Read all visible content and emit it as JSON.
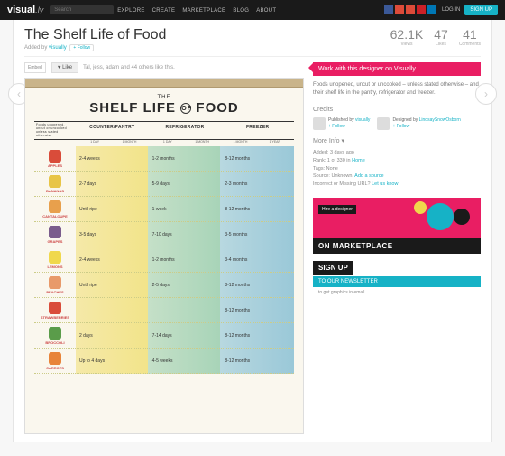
{
  "topbar": {
    "logo": "visual",
    "logoSuffix": ".ly",
    "searchPlaceholder": "Search",
    "nav": [
      "EXPLORE",
      "CREATE",
      "MARKETPLACE",
      "BLOG",
      "ABOUT"
    ],
    "socialColors": [
      "#3b5998",
      "#dd4b39",
      "#dd4b39",
      "#cb2027",
      "#0077b5"
    ],
    "login": "LOG IN",
    "signup": "SIGN UP"
  },
  "header": {
    "title": "The Shelf Life of Food",
    "addedBy": "Added by",
    "author": "visually",
    "follow": "+ Follow"
  },
  "stats": [
    {
      "n": "62.1K",
      "l": "Views"
    },
    {
      "n": "47",
      "l": "Likes"
    },
    {
      "n": "41",
      "l": "Comments"
    }
  ],
  "likebar": {
    "embed": "Embed",
    "like": "♥ Like",
    "likers": "Tal, jess, adam and 44 others like this."
  },
  "poster": {
    "the": "THE",
    "title1": "SHELF LIFE",
    "of": "OF",
    "title2": "FOOD",
    "note": "Foods unopened, uncut or uncooked unless stated otherwise",
    "cols": [
      "COUNTER/PANTRY",
      "REFRIGERATOR",
      "FREEZER"
    ],
    "sub": [
      "1 DAY",
      "1 MONTH",
      "1 DAY",
      "1 MONTH",
      "1 MONTH",
      "1 YEAR"
    ],
    "rows": [
      {
        "name": "APPLES",
        "color": "#d94c3a",
        "cells": [
          "2-4 weeks",
          "1-2 months",
          "8-12 months"
        ]
      },
      {
        "name": "BANANAS",
        "color": "#e8c547",
        "cells": [
          "2-7 days",
          "5-9 days",
          "2-3 months"
        ]
      },
      {
        "name": "CANTALOUPE",
        "color": "#e8a04c",
        "cells": [
          "Until ripe",
          "1 week",
          "8-12 months"
        ]
      },
      {
        "name": "GRAPES",
        "color": "#7a5c8c",
        "cells": [
          "3-5 days",
          "7-10 days",
          "3-5 months"
        ]
      },
      {
        "name": "LEMONS",
        "color": "#f0d84c",
        "cells": [
          "2-4 weeks",
          "1-2 months",
          "3-4 months"
        ]
      },
      {
        "name": "PEACHES",
        "color": "#e89a6a",
        "cells": [
          "Until ripe",
          "2-5 days",
          "8-12 months"
        ]
      },
      {
        "name": "STRAWBERRIES",
        "color": "#d94c3a",
        "cells": [
          "",
          "",
          "8-12 months"
        ]
      },
      {
        "name": "BROCCOLI",
        "color": "#5a9c4a",
        "cells": [
          "2 days",
          "7-14 days",
          "8-12 months"
        ]
      },
      {
        "name": "CARROTS",
        "color": "#e8843a",
        "cells": [
          "Up to 4 days",
          "4-5 weeks",
          "8-12 months"
        ]
      }
    ]
  },
  "cta": "Work with this designer on Visually",
  "desc": "Foods unopened, uncut or uncooked – unless stated otherwise – and their shelf life in the pantry, refrigerator and freezer.",
  "credits": {
    "title": "Credits",
    "pub": "Published by",
    "pubName": "visually",
    "des": "Designed by",
    "desName": "LindsaySnowOsborn",
    "follow": "+ Follow"
  },
  "moreinfo": {
    "title": "More Info ▾",
    "lines": [
      {
        "k": "Added:",
        "v": "3 days ago"
      },
      {
        "k": "Rank:",
        "v": "1 of 330 in ",
        "link": "Home"
      },
      {
        "k": "Tags:",
        "v": "None"
      },
      {
        "k": "Source:",
        "v": "Unknown. ",
        "link": "Add a source"
      },
      {
        "k": "Incorrect or Missing URL?",
        "v": "",
        "link": "Let us know"
      }
    ]
  },
  "promo": {
    "hire": "Hire a designer",
    "txt": "ON MARKETPLACE"
  },
  "news": {
    "su": "SIGN UP",
    "to": "TO OUR NEWSLETTER",
    "sub": "to get graphics in email"
  }
}
